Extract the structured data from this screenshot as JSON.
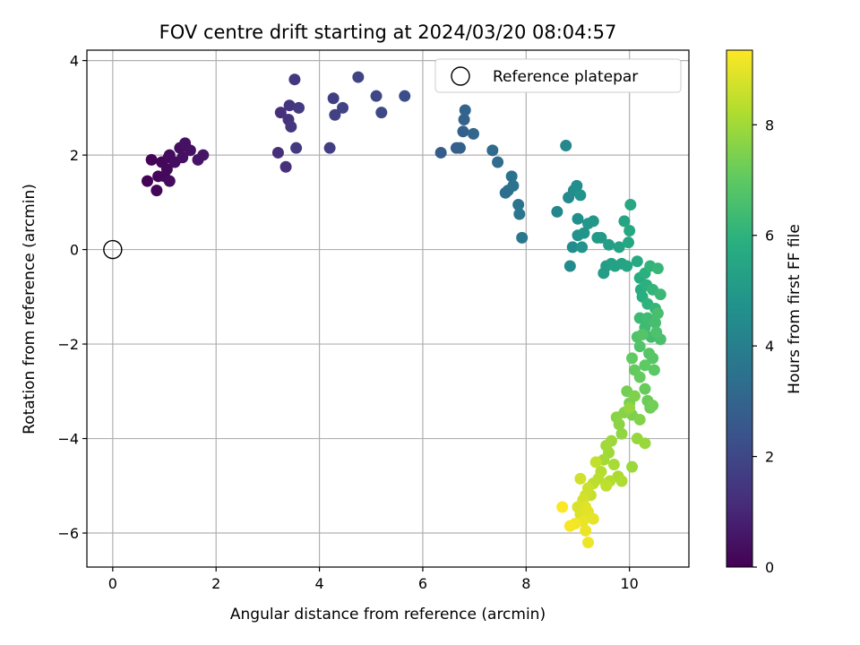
{
  "chart_data": {
    "type": "scatter",
    "title": "FOV centre drift starting at 2024/03/20 08:04:57",
    "xlabel": "Angular distance from reference (arcmin)",
    "ylabel": "Rotation from reference (arcmin)",
    "xlim": [
      -0.5,
      11.15
    ],
    "ylim": [
      -6.72,
      4.22
    ],
    "xticks": [
      0,
      2,
      4,
      6,
      8,
      10
    ],
    "yticks": [
      -6,
      -4,
      -2,
      0,
      2,
      4
    ],
    "xtick_labels": [
      "0",
      "2",
      "4",
      "6",
      "8",
      "10"
    ],
    "ytick_labels": [
      "−6",
      "−4",
      "−2",
      "0",
      "2",
      "4"
    ],
    "grid": true,
    "legend": {
      "position": "top-right",
      "entries": [
        "Reference platepar"
      ]
    },
    "reference_point": {
      "label": "Reference platepar",
      "x": 0,
      "y": 0
    },
    "colorbar": {
      "label": "Hours from first FF file",
      "colormap": "viridis",
      "range": [
        0,
        9.35
      ],
      "ticks": [
        0,
        2,
        4,
        6,
        8
      ],
      "tick_labels": [
        "0",
        "2",
        "4",
        "6",
        "8"
      ]
    },
    "points": [
      {
        "x": 0.67,
        "y": 1.45,
        "t": 0.05
      },
      {
        "x": 0.75,
        "y": 1.9,
        "t": 0.1
      },
      {
        "x": 0.85,
        "y": 1.25,
        "t": 0.12
      },
      {
        "x": 0.88,
        "y": 1.55,
        "t": 0.15
      },
      {
        "x": 0.95,
        "y": 1.85,
        "t": 0.18
      },
      {
        "x": 1.0,
        "y": 1.55,
        "t": 0.2
      },
      {
        "x": 1.05,
        "y": 1.7,
        "t": 0.22
      },
      {
        "x": 1.08,
        "y": 1.95,
        "t": 0.25
      },
      {
        "x": 1.1,
        "y": 2.0,
        "t": 0.27
      },
      {
        "x": 1.1,
        "y": 1.45,
        "t": 0.3
      },
      {
        "x": 1.2,
        "y": 1.85,
        "t": 0.33
      },
      {
        "x": 1.3,
        "y": 2.15,
        "t": 0.36
      },
      {
        "x": 1.35,
        "y": 1.95,
        "t": 0.4
      },
      {
        "x": 1.4,
        "y": 2.25,
        "t": 0.43
      },
      {
        "x": 1.5,
        "y": 2.1,
        "t": 0.46
      },
      {
        "x": 1.65,
        "y": 1.9,
        "t": 0.5
      },
      {
        "x": 1.75,
        "y": 2.0,
        "t": 0.53
      },
      {
        "x": 3.2,
        "y": 2.05,
        "t": 1.2
      },
      {
        "x": 3.25,
        "y": 2.9,
        "t": 1.25
      },
      {
        "x": 3.35,
        "y": 1.75,
        "t": 1.3
      },
      {
        "x": 3.4,
        "y": 2.75,
        "t": 1.35
      },
      {
        "x": 3.42,
        "y": 3.05,
        "t": 1.4
      },
      {
        "x": 3.45,
        "y": 2.6,
        "t": 1.45
      },
      {
        "x": 3.52,
        "y": 3.6,
        "t": 1.5
      },
      {
        "x": 3.55,
        "y": 2.15,
        "t": 1.55
      },
      {
        "x": 3.6,
        "y": 3.0,
        "t": 1.6
      },
      {
        "x": 4.2,
        "y": 2.15,
        "t": 1.7
      },
      {
        "x": 4.27,
        "y": 3.2,
        "t": 1.75
      },
      {
        "x": 4.3,
        "y": 2.85,
        "t": 1.8
      },
      {
        "x": 4.45,
        "y": 3.0,
        "t": 1.85
      },
      {
        "x": 4.75,
        "y": 3.65,
        "t": 1.9
      },
      {
        "x": 5.1,
        "y": 3.25,
        "t": 2.0
      },
      {
        "x": 5.2,
        "y": 2.9,
        "t": 2.05
      },
      {
        "x": 5.65,
        "y": 3.25,
        "t": 2.2
      },
      {
        "x": 6.35,
        "y": 2.05,
        "t": 2.7
      },
      {
        "x": 6.65,
        "y": 2.15,
        "t": 2.8
      },
      {
        "x": 6.72,
        "y": 2.15,
        "t": 2.85
      },
      {
        "x": 6.78,
        "y": 2.5,
        "t": 2.9
      },
      {
        "x": 6.8,
        "y": 2.75,
        "t": 2.95
      },
      {
        "x": 6.82,
        "y": 2.95,
        "t": 3.0
      },
      {
        "x": 6.98,
        "y": 2.45,
        "t": 3.05
      },
      {
        "x": 7.35,
        "y": 2.1,
        "t": 3.2
      },
      {
        "x": 7.45,
        "y": 1.85,
        "t": 3.3
      },
      {
        "x": 7.6,
        "y": 1.2,
        "t": 3.4
      },
      {
        "x": 7.65,
        "y": 1.25,
        "t": 3.45
      },
      {
        "x": 7.72,
        "y": 1.55,
        "t": 3.5
      },
      {
        "x": 7.75,
        "y": 1.35,
        "t": 3.55
      },
      {
        "x": 7.85,
        "y": 0.95,
        "t": 3.6
      },
      {
        "x": 7.87,
        "y": 0.75,
        "t": 3.65
      },
      {
        "x": 7.92,
        "y": 0.25,
        "t": 3.7
      },
      {
        "x": 8.6,
        "y": 0.8,
        "t": 4.3
      },
      {
        "x": 8.77,
        "y": 2.2,
        "t": 4.35
      },
      {
        "x": 8.82,
        "y": 1.1,
        "t": 4.4
      },
      {
        "x": 8.85,
        "y": -0.35,
        "t": 4.45
      },
      {
        "x": 8.9,
        "y": 0.05,
        "t": 4.5
      },
      {
        "x": 8.92,
        "y": 1.25,
        "t": 4.55
      },
      {
        "x": 8.98,
        "y": 1.35,
        "t": 4.6
      },
      {
        "x": 9.0,
        "y": 0.65,
        "t": 4.65
      },
      {
        "x": 9.0,
        "y": 0.3,
        "t": 4.7
      },
      {
        "x": 9.05,
        "y": 1.15,
        "t": 4.75
      },
      {
        "x": 9.08,
        "y": 0.05,
        "t": 4.8
      },
      {
        "x": 9.12,
        "y": 0.35,
        "t": 4.85
      },
      {
        "x": 9.2,
        "y": 0.55,
        "t": 4.9
      },
      {
        "x": 9.3,
        "y": 0.6,
        "t": 4.95
      },
      {
        "x": 9.38,
        "y": 0.25,
        "t": 5.0
      },
      {
        "x": 9.45,
        "y": 0.25,
        "t": 5.05
      },
      {
        "x": 9.5,
        "y": -0.5,
        "t": 5.1
      },
      {
        "x": 9.55,
        "y": -0.35,
        "t": 5.15
      },
      {
        "x": 9.6,
        "y": 0.1,
        "t": 5.2
      },
      {
        "x": 9.65,
        "y": -0.3,
        "t": 5.25
      },
      {
        "x": 9.72,
        "y": -0.35,
        "t": 5.3
      },
      {
        "x": 9.8,
        "y": 0.05,
        "t": 5.35
      },
      {
        "x": 9.85,
        "y": -0.3,
        "t": 5.4
      },
      {
        "x": 9.9,
        "y": 0.6,
        "t": 5.45
      },
      {
        "x": 9.95,
        "y": -0.35,
        "t": 5.5
      },
      {
        "x": 9.98,
        "y": 0.15,
        "t": 5.55
      },
      {
        "x": 10.0,
        "y": 0.4,
        "t": 5.6
      },
      {
        "x": 10.02,
        "y": 0.95,
        "t": 5.62
      },
      {
        "x": 10.15,
        "y": -0.25,
        "t": 5.7
      },
      {
        "x": 10.2,
        "y": -0.6,
        "t": 5.75
      },
      {
        "x": 10.22,
        "y": -0.85,
        "t": 5.8
      },
      {
        "x": 10.25,
        "y": -1.0,
        "t": 5.85
      },
      {
        "x": 10.3,
        "y": -0.5,
        "t": 5.9
      },
      {
        "x": 10.33,
        "y": -0.75,
        "t": 5.95
      },
      {
        "x": 10.35,
        "y": -1.15,
        "t": 6.0
      },
      {
        "x": 10.4,
        "y": -0.35,
        "t": 6.05
      },
      {
        "x": 10.45,
        "y": -0.85,
        "t": 6.1
      },
      {
        "x": 10.5,
        "y": -1.25,
        "t": 6.15
      },
      {
        "x": 10.55,
        "y": -0.4,
        "t": 6.2
      },
      {
        "x": 10.6,
        "y": -0.95,
        "t": 6.25
      },
      {
        "x": 10.2,
        "y": -1.45,
        "t": 6.3
      },
      {
        "x": 10.3,
        "y": -1.65,
        "t": 6.35
      },
      {
        "x": 10.35,
        "y": -1.45,
        "t": 6.4
      },
      {
        "x": 10.42,
        "y": -1.85,
        "t": 6.45
      },
      {
        "x": 10.5,
        "y": -1.55,
        "t": 6.5
      },
      {
        "x": 10.55,
        "y": -1.35,
        "t": 6.55
      },
      {
        "x": 10.6,
        "y": -1.9,
        "t": 6.6
      },
      {
        "x": 10.52,
        "y": -1.75,
        "t": 6.65
      },
      {
        "x": 10.15,
        "y": -1.85,
        "t": 6.7
      },
      {
        "x": 10.2,
        "y": -2.05,
        "t": 6.75
      },
      {
        "x": 10.25,
        "y": -1.8,
        "t": 6.8
      },
      {
        "x": 10.38,
        "y": -2.2,
        "t": 6.85
      },
      {
        "x": 10.45,
        "y": -2.3,
        "t": 6.9
      },
      {
        "x": 10.48,
        "y": -2.55,
        "t": 6.95
      },
      {
        "x": 10.3,
        "y": -2.45,
        "t": 7.0
      },
      {
        "x": 10.05,
        "y": -2.3,
        "t": 7.05
      },
      {
        "x": 10.1,
        "y": -2.55,
        "t": 7.1
      },
      {
        "x": 10.2,
        "y": -2.7,
        "t": 7.12
      },
      {
        "x": 10.3,
        "y": -2.95,
        "t": 7.15
      },
      {
        "x": 10.35,
        "y": -3.2,
        "t": 7.2
      },
      {
        "x": 10.4,
        "y": -3.35,
        "t": 7.25
      },
      {
        "x": 10.45,
        "y": -3.3,
        "t": 7.3
      },
      {
        "x": 9.95,
        "y": -3.0,
        "t": 7.35
      },
      {
        "x": 10.0,
        "y": -3.25,
        "t": 7.4
      },
      {
        "x": 10.05,
        "y": -3.5,
        "t": 7.45
      },
      {
        "x": 10.1,
        "y": -3.1,
        "t": 7.5
      },
      {
        "x": 10.2,
        "y": -3.6,
        "t": 7.55
      },
      {
        "x": 9.9,
        "y": -3.45,
        "t": 7.6
      },
      {
        "x": 9.75,
        "y": -3.55,
        "t": 7.65
      },
      {
        "x": 9.8,
        "y": -3.7,
        "t": 7.7
      },
      {
        "x": 9.85,
        "y": -3.9,
        "t": 7.75
      },
      {
        "x": 10.0,
        "y": -3.35,
        "t": 7.8
      },
      {
        "x": 10.15,
        "y": -4.0,
        "t": 7.85
      },
      {
        "x": 10.3,
        "y": -4.1,
        "t": 7.9
      },
      {
        "x": 10.05,
        "y": -4.6,
        "t": 7.92
      },
      {
        "x": 9.65,
        "y": -4.05,
        "t": 7.95
      },
      {
        "x": 9.6,
        "y": -4.3,
        "t": 7.98
      },
      {
        "x": 9.55,
        "y": -4.15,
        "t": 8.0
      },
      {
        "x": 9.5,
        "y": -4.45,
        "t": 8.05
      },
      {
        "x": 9.7,
        "y": -4.55,
        "t": 8.1
      },
      {
        "x": 9.78,
        "y": -4.8,
        "t": 8.15
      },
      {
        "x": 9.85,
        "y": -4.9,
        "t": 8.2
      },
      {
        "x": 9.62,
        "y": -4.9,
        "t": 8.25
      },
      {
        "x": 9.45,
        "y": -4.7,
        "t": 8.3
      },
      {
        "x": 9.4,
        "y": -4.85,
        "t": 8.35
      },
      {
        "x": 9.3,
        "y": -4.95,
        "t": 8.4
      },
      {
        "x": 9.55,
        "y": -5.0,
        "t": 8.45
      },
      {
        "x": 9.35,
        "y": -4.5,
        "t": 8.5
      },
      {
        "x": 9.25,
        "y": -5.2,
        "t": 8.55
      },
      {
        "x": 9.2,
        "y": -5.05,
        "t": 8.6
      },
      {
        "x": 9.15,
        "y": -5.2,
        "t": 8.65
      },
      {
        "x": 9.05,
        "y": -4.85,
        "t": 8.7
      },
      {
        "x": 9.1,
        "y": -5.3,
        "t": 8.75
      },
      {
        "x": 9.0,
        "y": -5.45,
        "t": 8.8
      },
      {
        "x": 9.05,
        "y": -5.6,
        "t": 8.85
      },
      {
        "x": 9.15,
        "y": -5.45,
        "t": 8.9
      },
      {
        "x": 9.2,
        "y": -5.55,
        "t": 8.95
      },
      {
        "x": 9.3,
        "y": -5.7,
        "t": 9.0
      },
      {
        "x": 9.1,
        "y": -5.75,
        "t": 9.05
      },
      {
        "x": 9.15,
        "y": -5.95,
        "t": 9.1
      },
      {
        "x": 9.2,
        "y": -6.2,
        "t": 9.15
      },
      {
        "x": 8.95,
        "y": -5.8,
        "t": 9.2
      },
      {
        "x": 8.85,
        "y": -5.85,
        "t": 9.25
      },
      {
        "x": 8.7,
        "y": -5.45,
        "t": 9.3
      }
    ]
  }
}
